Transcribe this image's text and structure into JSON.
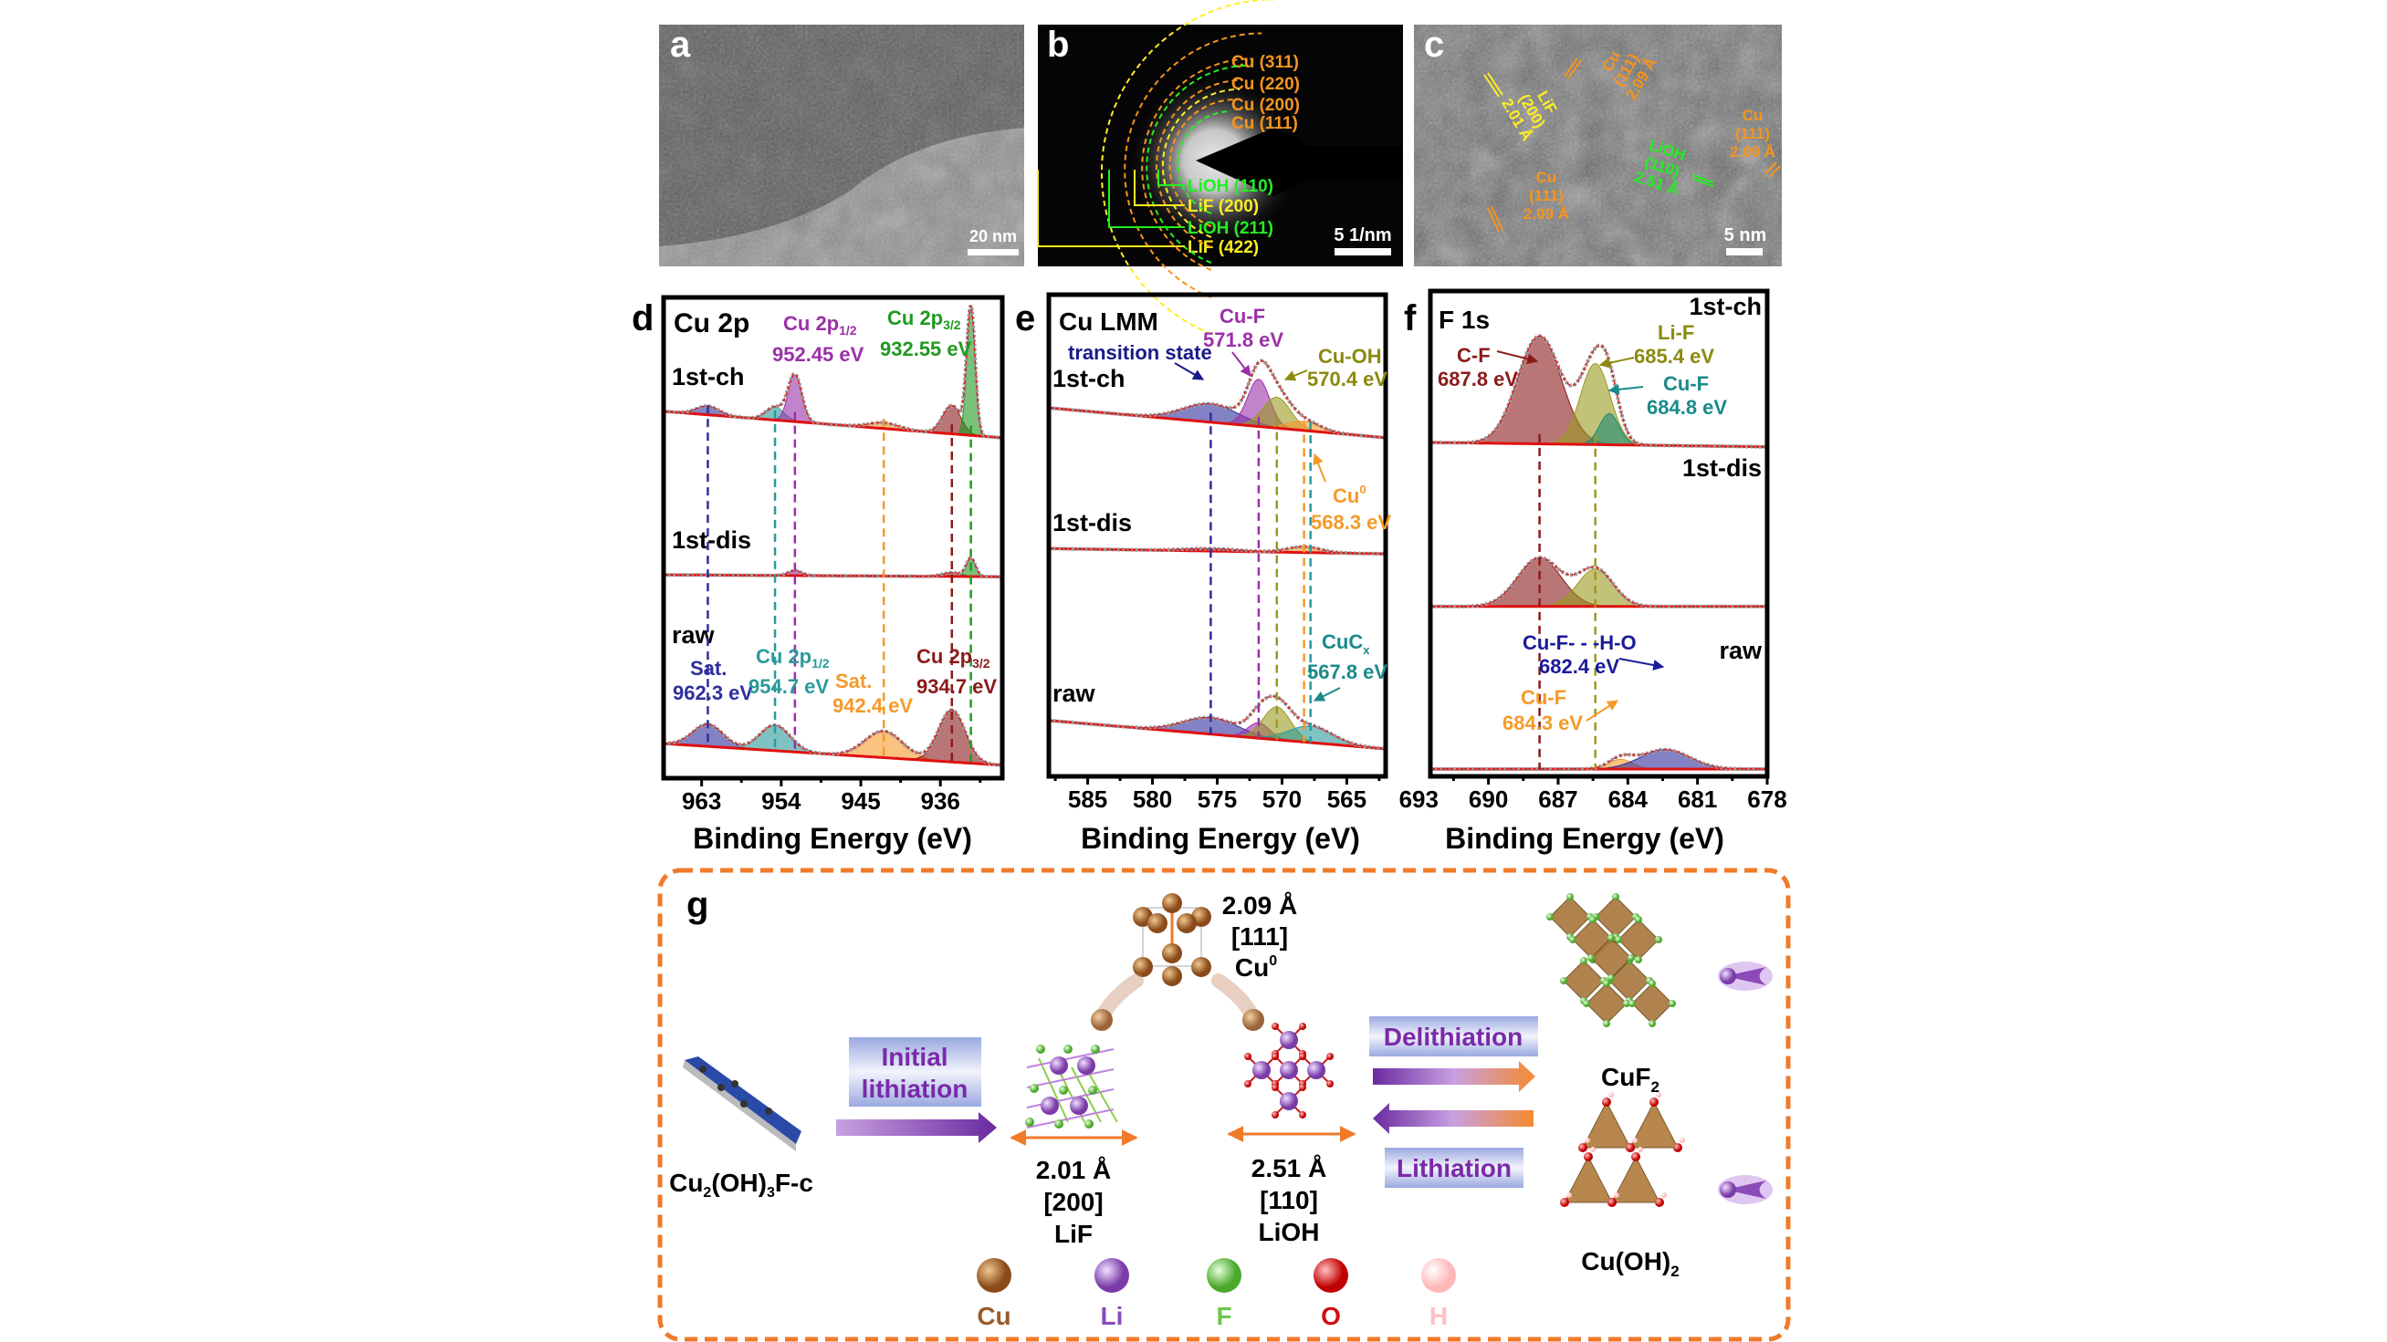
{
  "panels": {
    "a": {
      "letter": "a",
      "scale_bar": "20 nm"
    },
    "b": {
      "letter": "b",
      "scale_bar": "5 1/nm",
      "rings": [
        {
          "label": "Cu (311)",
          "color": "#f7941d"
        },
        {
          "label": "Cu (220)",
          "color": "#f7941d"
        },
        {
          "label": "Cu (200)",
          "color": "#f7941d"
        },
        {
          "label": "Cu (111)",
          "color": "#f7941d"
        },
        {
          "label": "LiOH (110)",
          "color": "#22ee22"
        },
        {
          "label": "LiF (200)",
          "color": "#ffee22"
        },
        {
          "label": "LiOH (211)",
          "color": "#22ee22"
        },
        {
          "label": "LiF (422)",
          "color": "#ffee22"
        }
      ]
    },
    "c": {
      "letter": "c",
      "scale_bar": "5 nm",
      "fringes": [
        {
          "phase": "Cu",
          "plane": "(111)",
          "d": "2.09 Å",
          "color": "#f7941d"
        },
        {
          "phase": "LiF",
          "plane": "(200)",
          "d": "2.01 Å",
          "color": "#ffee22"
        },
        {
          "phase": "LiOH",
          "plane": "(110)",
          "d": "2.51 Å",
          "color": "#22ee22"
        },
        {
          "phase": "Cu",
          "plane": "(111)",
          "d": "2.09 Å",
          "color": "#f7941d"
        },
        {
          "phase": "Cu",
          "plane": "(111)",
          "d": "2.09 Å",
          "color": "#f7941d"
        }
      ]
    },
    "g": {
      "letter": "g",
      "precursor": {
        "main": "Cu",
        "s1": "2",
        "mid": "(OH)",
        "s2": "3",
        "end": "F-c"
      },
      "initial_lithiation": [
        "Initial",
        "lithiation"
      ],
      "cu0": {
        "d": "2.09 Å",
        "dir": "[111]",
        "name": "Cu",
        "sup": "0"
      },
      "lif": {
        "d": "2.01 Å",
        "dir": "[200]",
        "name": "LiF"
      },
      "lioh": {
        "d": "2.51 Å",
        "dir": "[110]",
        "name": "LiOH"
      },
      "delithiation": "Delithiation",
      "lithiation": "Lithiation",
      "cuf2": {
        "name": "CuF",
        "sub": "2"
      },
      "cuoh2": {
        "name": "Cu(OH)",
        "sub": "2"
      },
      "legend": [
        {
          "label": "Cu",
          "color": "#9a5a2a"
        },
        {
          "label": "Li",
          "color": "#8a4ab8"
        },
        {
          "label": "F",
          "color": "#6cc84a"
        },
        {
          "label": "O",
          "color": "#d01010"
        },
        {
          "label": "H",
          "color": "#ffc8c8"
        }
      ]
    }
  },
  "chart_data": [
    {
      "panel": "d",
      "type": "line",
      "title": "Cu 2p",
      "xlabel": "Binding Energy (eV)",
      "ylabel": "",
      "xlim": [
        967.3,
        929
      ],
      "ylim": [
        0,
        100
      ],
      "x_reversed": true,
      "xticks": [
        963,
        954,
        945,
        936
      ],
      "traces": [
        {
          "name": "1st-ch",
          "baseline": [
            76.3,
            70.8
          ],
          "components": [
            {
              "center": 962.3,
              "height": 1.8,
              "fwhm": 3.0,
              "color": "#2e2e9e"
            },
            {
              "center": 954.7,
              "height": 2.7,
              "fwhm": 2.4,
              "color": "#2a9a9a"
            },
            {
              "center": 952.45,
              "height": 9.7,
              "fwhm": 1.8,
              "color": "#9b30a8"
            },
            {
              "center": 942.4,
              "height": 1.2,
              "fwhm": 4.0,
              "color": "#f59a2a"
            },
            {
              "center": 934.7,
              "height": 5.9,
              "fwhm": 2.4,
              "color": "#8b1a1a"
            },
            {
              "center": 932.55,
              "height": 26.4,
              "fwhm": 1.1,
              "color": "#1f9a1f"
            }
          ]
        },
        {
          "name": "1st-dis",
          "baseline": [
            42.3,
            41.9
          ],
          "components": [
            {
              "center": 952.45,
              "height": 1.0,
              "fwhm": 1.8,
              "color": "#9b30a8"
            },
            {
              "center": 934.7,
              "height": 0.8,
              "fwhm": 2.4,
              "color": "#8b1a1a"
            },
            {
              "center": 932.55,
              "height": 3.8,
              "fwhm": 1.2,
              "color": "#1f9a1f"
            }
          ]
        },
        {
          "name": "raw",
          "baseline": [
            7.2,
            2.7
          ],
          "components": [
            {
              "center": 962.3,
              "height": 4.6,
              "fwhm": 4.0,
              "color": "#2e2e9e"
            },
            {
              "center": 954.7,
              "height": 5.3,
              "fwhm": 4.0,
              "color": "#2a9a9a"
            },
            {
              "center": 942.4,
              "height": 5.5,
              "fwhm": 5.0,
              "color": "#f59a2a"
            },
            {
              "center": 934.7,
              "height": 10.8,
              "fwhm": 3.5,
              "color": "#8b1a1a"
            }
          ]
        }
      ],
      "guides": [
        {
          "energy": 962.3,
          "color": "#2e2e9e"
        },
        {
          "energy": 954.7,
          "color": "#2a9a9a"
        },
        {
          "energy": 952.45,
          "color": "#9b30a8"
        },
        {
          "energy": 942.4,
          "color": "#f59a2a"
        },
        {
          "energy": 934.7,
          "color": "#8b1a1a"
        },
        {
          "energy": 932.55,
          "color": "#1f9a1f"
        }
      ],
      "annotations": {
        "cu2p12_ch": {
          "main": "Cu 2p",
          "sub": "1/2",
          "value": "952.45 eV",
          "color": "#9b30a8"
        },
        "cu2p32_ch": {
          "main": "Cu 2p",
          "sub": "3/2",
          "value": "932.55 eV",
          "color": "#1f9a1f"
        },
        "sat_raw": {
          "main": "Sat.",
          "value": "962.3 eV",
          "color": "#2e2e9e"
        },
        "cu2p12_raw": {
          "main": "Cu 2p",
          "sub": "1/2",
          "value": "954.7 eV",
          "color": "#2a9a9a"
        },
        "sat2_raw": {
          "main": "Sat.",
          "value": "942.4 eV",
          "color": "#f59a2a"
        },
        "cu2p32_raw": {
          "main": "Cu 2p",
          "sub": "3/2",
          "value": "934.7 eV",
          "color": "#8b1a1a"
        }
      }
    },
    {
      "panel": "e",
      "type": "line",
      "title": "Cu LMM",
      "xlabel": "Binding Energy (eV)",
      "ylabel": "",
      "xlim": [
        588,
        562
      ],
      "ylim": [
        0,
        100
      ],
      "x_reversed": true,
      "xticks": [
        585,
        580,
        575,
        570,
        565
      ],
      "traces": [
        {
          "name": "1st-ch",
          "baseline": [
            76.5,
            70.3
          ],
          "components": [
            {
              "center": 575.5,
              "height": 3.8,
              "fwhm": 5.0,
              "color": "#2e2e9e"
            },
            {
              "center": 571.8,
              "height": 9.8,
              "fwhm": 2.0,
              "color": "#9b30a8"
            },
            {
              "center": 570.4,
              "height": 6.4,
              "fwhm": 2.5,
              "color": "#9a9a1f"
            },
            {
              "center": 568.3,
              "height": 1.9,
              "fwhm": 3.0,
              "color": "#f59a2a"
            }
          ]
        },
        {
          "name": "1st-dis",
          "baseline": [
            47.3,
            46.2
          ],
          "components": [
            {
              "center": 575.5,
              "height": 0.5,
              "fwhm": 5.0,
              "color": "#2e2e9e"
            },
            {
              "center": 568.3,
              "height": 1.2,
              "fwhm": 3.0,
              "color": "#f59a2a"
            }
          ]
        },
        {
          "name": "raw",
          "baseline": [
            11.6,
            5.7
          ],
          "components": [
            {
              "center": 575.5,
              "height": 3.4,
              "fwhm": 5.0,
              "color": "#2e2e9e"
            },
            {
              "center": 571.8,
              "height": 3.2,
              "fwhm": 2.0,
              "color": "#9b30a8"
            },
            {
              "center": 570.4,
              "height": 6.8,
              "fwhm": 2.5,
              "color": "#9a9a1f"
            },
            {
              "center": 567.8,
              "height": 3.4,
              "fwhm": 4.0,
              "color": "#2a9a9a"
            }
          ]
        }
      ],
      "guides": [
        {
          "energy": 575.5,
          "color": "#2e2e9e"
        },
        {
          "energy": 571.8,
          "color": "#9b30a8"
        },
        {
          "energy": 570.4,
          "color": "#9a9a1f"
        },
        {
          "energy": 568.3,
          "color": "#f59a2a"
        },
        {
          "energy": 567.8,
          "color": "#2a9a9a"
        }
      ],
      "annotations": {
        "transition": {
          "main": "transition state",
          "color": "#1a1a8a"
        },
        "cuf": {
          "main": "Cu-F",
          "value": "571.8 eV",
          "color": "#9b30a8"
        },
        "cuoh": {
          "main": "Cu-OH",
          "value": "570.4 eV",
          "color": "#8a8a10"
        },
        "cu0": {
          "main": "Cu",
          "sup": "0",
          "value": "568.3 eV",
          "color": "#f59a2a"
        },
        "cucx": {
          "main": "CuC",
          "sub": "x",
          "value": "567.8 eV",
          "color": "#1a8a8a"
        }
      }
    },
    {
      "panel": "f",
      "type": "line",
      "title": "F 1s",
      "xlabel": "Binding Energy (eV)",
      "ylabel": "",
      "xlim": [
        692.5,
        678
      ],
      "ylim": [
        0,
        100
      ],
      "x_reversed": true,
      "xticks": [
        693,
        690,
        687,
        684,
        681,
        678
      ],
      "traces": [
        {
          "name": "1st-ch",
          "baseline": [
            68.8,
            67.9
          ],
          "components": [
            {
              "center": 687.8,
              "height": 22.2,
              "fwhm": 2.2,
              "color": "#8b1a1a"
            },
            {
              "center": 685.4,
              "height": 16.7,
              "fwhm": 1.5,
              "color": "#9a9a1f"
            },
            {
              "center": 684.8,
              "height": 6.4,
              "fwhm": 1.0,
              "color": "#1a8a7a"
            }
          ]
        },
        {
          "name": "1st-dis",
          "baseline": [
            35,
            35
          ],
          "components": [
            {
              "center": 687.8,
              "height": 10.0,
              "fwhm": 2.2,
              "color": "#8b1a1a"
            },
            {
              "center": 685.4,
              "height": 7.7,
              "fwhm": 1.8,
              "color": "#9a9a1f"
            }
          ]
        },
        {
          "name": "raw",
          "baseline": [
            1.5,
            1.5
          ],
          "components": [
            {
              "center": 684.3,
              "height": 2.0,
              "fwhm": 1.2,
              "color": "#f59a2a"
            },
            {
              "center": 682.4,
              "height": 4.0,
              "fwhm": 2.5,
              "color": "#2e2e9e"
            }
          ]
        }
      ],
      "guides": [
        {
          "energy": 687.8,
          "color": "#8b1a1a"
        },
        {
          "energy": 685.4,
          "color": "#9a9a1f"
        }
      ],
      "annotations": {
        "cf": {
          "main": "C-F",
          "value": "687.8 eV",
          "color": "#8b1a1a"
        },
        "lif": {
          "main": "Li-F",
          "value": "685.4 eV",
          "color": "#8a8a10"
        },
        "cuf_ch": {
          "main": "Cu-F",
          "value": "684.8 eV",
          "color": "#1a8a8a"
        },
        "cufho": {
          "main": "Cu-F- - -H-O",
          "value": "682.4 eV",
          "color": "#1a1a9a"
        },
        "cuf_raw": {
          "main": "Cu-F",
          "value": "684.3 eV",
          "color": "#f59a2a"
        }
      }
    }
  ]
}
